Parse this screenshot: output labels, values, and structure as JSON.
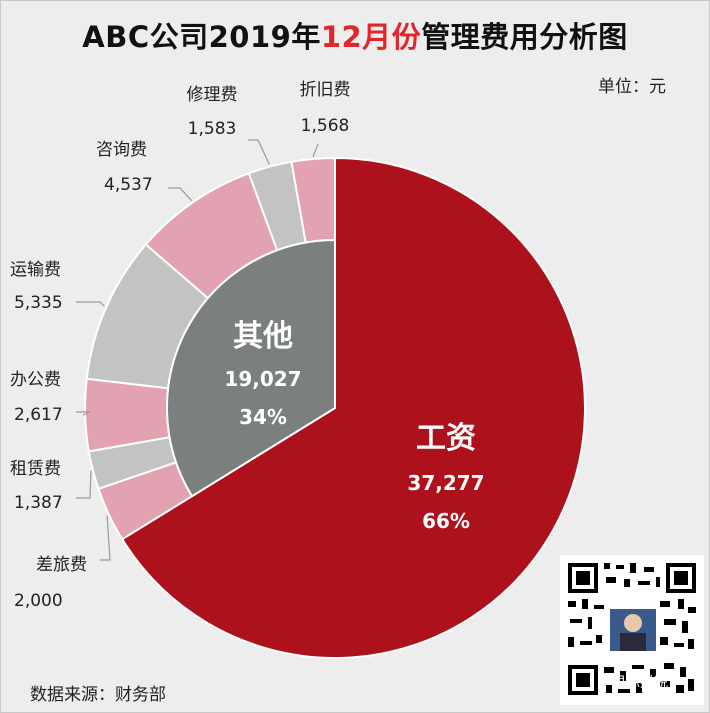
{
  "title": {
    "before": "ABC公司2019年",
    "highlight": "12月份",
    "after": "管理费用分析图"
  },
  "unit_label": "单位：元",
  "source_label": "数据来源：财务部",
  "watermark": "思源财税",
  "colors": {
    "wage": "#ad111c",
    "other": "#7b7f7d",
    "pink": "#e3a2b1",
    "gray": "#c3c3c3",
    "title_highlight": "#e0262b",
    "background": "#ededed"
  },
  "chart_data": {
    "type": "pie",
    "title": "ABC公司2019年12月份管理费用分析图",
    "unit": "元",
    "outer": [
      {
        "name": "工资",
        "value": 37277,
        "percent": "66%"
      },
      {
        "name": "差旅费",
        "value": 2000
      },
      {
        "name": "租赁费",
        "value": 1387
      },
      {
        "name": "办公费",
        "value": 2617
      },
      {
        "name": "运输费",
        "value": 5335
      },
      {
        "name": "咨询费",
        "value": 4537
      },
      {
        "name": "修理费",
        "value": 1583
      },
      {
        "name": "折旧费",
        "value": 1568
      }
    ],
    "inner": [
      {
        "name": "工资",
        "value": 37277,
        "percent": "66%"
      },
      {
        "name": "其他",
        "value": 19027,
        "percent": "34%"
      }
    ],
    "labels": {
      "wage": {
        "name": "工资",
        "value": "37,277",
        "percent": "66%"
      },
      "other": {
        "name": "其他",
        "value": "19,027",
        "percent": "34%"
      },
      "outer": [
        {
          "name": "差旅费",
          "value": "2,000"
        },
        {
          "name": "租赁费",
          "value": "1,387"
        },
        {
          "name": "办公费",
          "value": "2,617"
        },
        {
          "name": "运输费",
          "value": "5,335"
        },
        {
          "name": "咨询费",
          "value": "4,537"
        },
        {
          "name": "修理费",
          "value": "1,583"
        },
        {
          "name": "折旧费",
          "value": "1,568"
        }
      ]
    }
  }
}
